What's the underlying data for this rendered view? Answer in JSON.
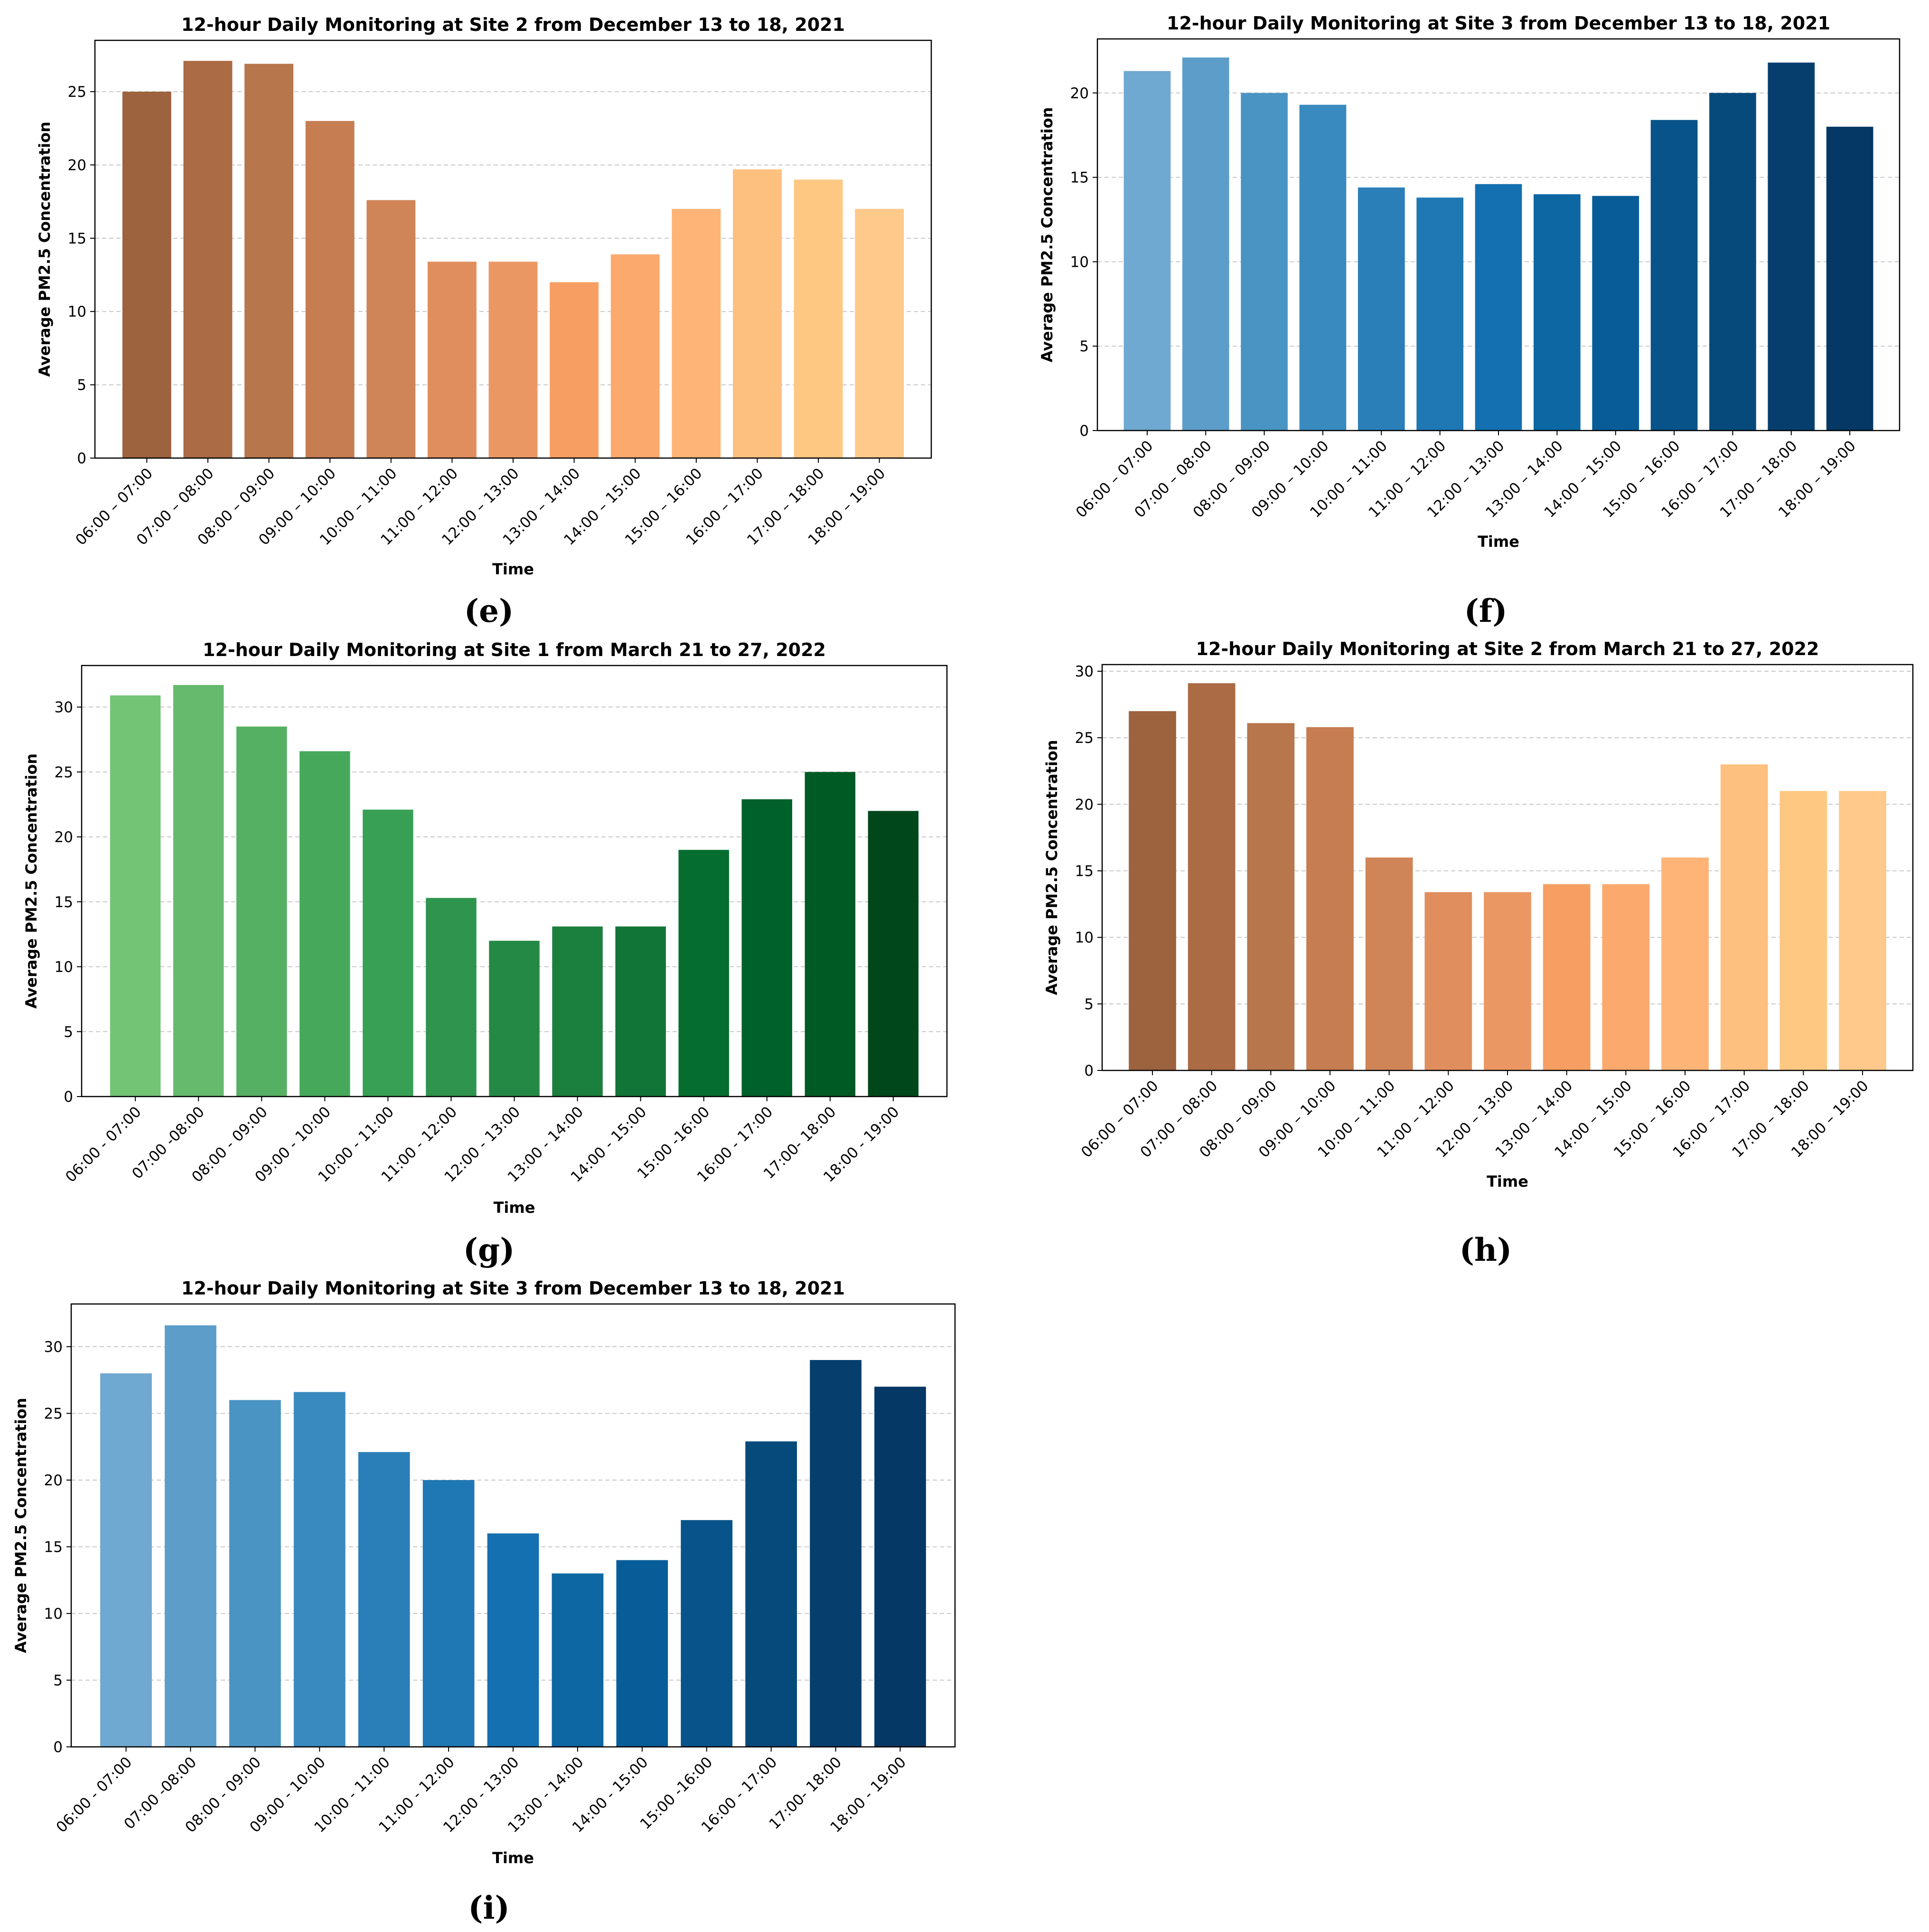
{
  "chart_data": [
    {
      "id": "e",
      "type": "bar",
      "panel_label": "(e)",
      "title": "12-hour Daily Monitoring at Site 2 from December 13 to 18, 2021",
      "xlabel": "Time",
      "ylabel": "Average PM2.5 Concentration",
      "ylim": [
        0,
        28.5
      ],
      "yticks": [
        0,
        5,
        10,
        15,
        20,
        25
      ],
      "grid": "y-dashed",
      "categories": [
        "06:00 – 07:00",
        "07:00 – 08:00",
        "08:00 – 09:00",
        "09:00 – 10:00",
        "10:00 – 11:00",
        "11:00 – 12:00",
        "12:00 – 13:00",
        "13:00 – 14:00",
        "14:00 – 15:00",
        "15:00 – 16:00",
        "16:00 – 17:00",
        "17:00 – 18:00",
        "18:00 – 19:00"
      ],
      "values": [
        25.0,
        27.1,
        26.9,
        23.0,
        17.6,
        13.4,
        13.4,
        12.0,
        13.9,
        17.0,
        19.7,
        19.0,
        17.0
      ],
      "colors": [
        "#9c633e",
        "#aa6b45",
        "#b8764c",
        "#c67d52",
        "#d08558",
        "#e08e5e",
        "#eb9764",
        "#f79e63",
        "#fca96e",
        "#feb477",
        "#fec07e",
        "#fec882",
        "#fec98a"
      ]
    },
    {
      "id": "f",
      "type": "bar",
      "panel_label": "(f)",
      "title": "12-hour Daily Monitoring at Site 3 from December 13 to 18, 2021",
      "xlabel": "Time",
      "ylabel": "Average PM2.5 Concentration",
      "ylim": [
        0,
        23.2
      ],
      "yticks": [
        0,
        5,
        10,
        15,
        20
      ],
      "grid": "y-dashed",
      "categories": [
        "06:00 – 07:00",
        "07:00 – 08:00",
        "08:00 – 09:00",
        "09:00 – 10:00",
        "10:00 – 11:00",
        "11:00 – 12:00",
        "12:00 – 13:00",
        "13:00 – 14:00",
        "14:00 – 15:00",
        "15:00 – 16:00",
        "16:00 – 17:00",
        "17:00 – 18:00",
        "18:00 – 19:00"
      ],
      "values": [
        21.3,
        22.1,
        20.0,
        19.3,
        14.4,
        13.8,
        14.6,
        14.0,
        13.9,
        18.4,
        20.0,
        21.8,
        18.0
      ],
      "colors": [
        "#6fa8d0",
        "#5c9ec9",
        "#4a94c4",
        "#388abf",
        "#2a7fb8",
        "#1f77b4",
        "#1470b0",
        "#0c67a3",
        "#085d98",
        "#07538a",
        "#064a7c",
        "#063f6e",
        "#053864"
      ]
    },
    {
      "id": "g",
      "type": "bar",
      "panel_label": "(g)",
      "title": "12-hour Daily Monitoring at Site 1 from March 21 to 27, 2022",
      "xlabel": "Time",
      "ylabel": "Average PM2.5 Concentration",
      "ylim": [
        0,
        33.2
      ],
      "yticks": [
        0,
        5,
        10,
        15,
        20,
        25,
        30
      ],
      "grid": "y-dashed",
      "categories": [
        "06:00 - 07:00",
        "07:00 -08:00",
        "08:00 - 09:00",
        "09:00 - 10:00",
        "10:00 - 11:00",
        "11:00 - 12:00",
        "12:00 - 13:00",
        "13:00 - 14:00",
        "14:00 - 15:00",
        "15:00 -16:00",
        "16:00 - 17:00",
        "17:00- 18:00",
        "18:00 - 19:00"
      ],
      "values": [
        30.9,
        31.7,
        28.5,
        26.6,
        22.1,
        15.3,
        12.0,
        13.1,
        13.1,
        19.0,
        22.9,
        25.0,
        22.0
      ],
      "colors": [
        "#74c476",
        "#65ba6d",
        "#56b063",
        "#46a85b",
        "#38a055",
        "#2f944e",
        "#248945",
        "#1b7f3e",
        "#117537",
        "#056d2f",
        "#01612b",
        "#005a24",
        "#00481c"
      ]
    },
    {
      "id": "h",
      "type": "bar",
      "panel_label": "(h)",
      "title": "12-hour Daily Monitoring at Site 2 from March 21 to 27, 2022",
      "xlabel": "Time",
      "ylabel": "Average PM2.5 Concentration",
      "ylim": [
        0,
        30.5
      ],
      "yticks": [
        0,
        5,
        10,
        15,
        20,
        25,
        30
      ],
      "grid": "y-dashed",
      "categories": [
        "06:00 – 07:00",
        "07:00 – 08:00",
        "08:00 – 09:00",
        "09:00 – 10:00",
        "10:00 – 11:00",
        "11:00 – 12:00",
        "12:00 – 13:00",
        "13:00 – 14:00",
        "14:00 – 15:00",
        "15:00 – 16:00",
        "16:00 – 17:00",
        "17:00 – 18:00",
        "18:00 – 19:00"
      ],
      "values": [
        27.0,
        29.1,
        26.1,
        25.8,
        16.0,
        13.4,
        13.4,
        14.0,
        14.0,
        16.0,
        23.0,
        21.0,
        21.0
      ],
      "colors": [
        "#9c633e",
        "#aa6b45",
        "#b8764c",
        "#c67d52",
        "#d08558",
        "#e08e5e",
        "#eb9764",
        "#f79e63",
        "#fca96e",
        "#feb477",
        "#fec07e",
        "#fec882",
        "#fec98a"
      ]
    },
    {
      "id": "i",
      "type": "bar",
      "panel_label": "(i)",
      "title": "12-hour Daily Monitoring at Site 3 from December 13 to 18, 2021",
      "xlabel": "Time",
      "ylabel": "Average PM2.5 Concentration",
      "ylim": [
        0,
        33.2
      ],
      "yticks": [
        0,
        5,
        10,
        15,
        20,
        25,
        30
      ],
      "grid": "y-dashed",
      "categories": [
        "06:00 - 07:00",
        "07:00 -08:00",
        "08:00 - 09:00",
        "09:00 - 10:00",
        "10:00 - 11:00",
        "11:00 - 12:00",
        "12:00 - 13:00",
        "13:00 - 14:00",
        "14:00 - 15:00",
        "15:00 -16:00",
        "16:00 - 17:00",
        "17:00- 18:00",
        "18:00 - 19:00"
      ],
      "values": [
        28.0,
        31.6,
        26.0,
        26.6,
        22.1,
        20.0,
        16.0,
        13.0,
        14.0,
        17.0,
        22.9,
        29.0,
        27.0
      ],
      "colors": [
        "#6fa8d0",
        "#5c9ec9",
        "#4a94c4",
        "#388abf",
        "#2a7fb8",
        "#1f77b4",
        "#1470b0",
        "#0c67a3",
        "#085d98",
        "#07538a",
        "#064a7c",
        "#063f6e",
        "#053864"
      ]
    }
  ]
}
